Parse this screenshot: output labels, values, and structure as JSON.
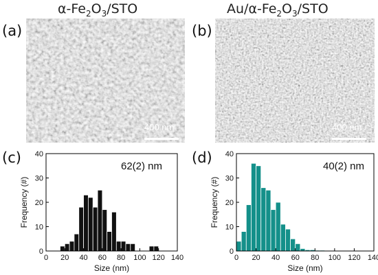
{
  "panels": {
    "a": {
      "label": "(a)",
      "title_prefix": "α-Fe",
      "sub1": "2",
      "mid": "O",
      "sub2": "3",
      "suffix": "/STO",
      "scale": "400 nm"
    },
    "b": {
      "label": "(b)",
      "title_prefix": "Au/α-Fe",
      "sub1": "2",
      "mid": "O",
      "sub2": "3",
      "suffix": "/STO",
      "scale": "400 nm"
    },
    "c": {
      "label": "(c)",
      "annotation": "62(2) nm"
    },
    "d": {
      "label": "(d)",
      "annotation": "40(2) nm"
    }
  },
  "colors": {
    "hist_c": "#111111",
    "hist_d": "#14908a"
  },
  "chart_data": [
    {
      "type": "bar",
      "title": "",
      "xlabel": "Size (nm)",
      "ylabel": "Frequency (#)",
      "xlim": [
        0,
        140
      ],
      "ylim": [
        0,
        40
      ],
      "xticks": [
        0,
        20,
        40,
        60,
        80,
        100,
        120,
        140
      ],
      "yticks": [
        0,
        10,
        20,
        30,
        40
      ],
      "bin_width": 5,
      "bin_starts": [
        15,
        20,
        25,
        30,
        35,
        40,
        45,
        50,
        55,
        60,
        65,
        70,
        75,
        80,
        85,
        90,
        95,
        100,
        105,
        110,
        115,
        120,
        125
      ],
      "values": [
        2,
        3,
        4,
        7,
        18,
        23,
        22,
        18,
        25,
        17,
        8,
        16,
        4,
        4,
        3,
        3,
        0,
        0,
        0,
        2,
        2,
        0,
        0
      ]
    },
    {
      "type": "bar",
      "title": "",
      "xlabel": "Size (nm)",
      "ylabel": "Frequency (#)",
      "xlim": [
        0,
        140
      ],
      "ylim": [
        0,
        40
      ],
      "xticks": [
        0,
        20,
        40,
        60,
        80,
        100,
        120,
        140
      ],
      "yticks": [
        0,
        10,
        20,
        30,
        40
      ],
      "bin_width": 5,
      "bin_starts": [
        0,
        5,
        10,
        15,
        20,
        25,
        30,
        35,
        40,
        45,
        50,
        55,
        60,
        65,
        70,
        75,
        80,
        85,
        90,
        95,
        100,
        105,
        110,
        115,
        120,
        125
      ],
      "values": [
        4,
        8,
        19,
        36,
        35,
        26,
        25,
        17,
        20,
        11,
        9,
        5,
        3,
        1,
        0.5,
        0.5,
        0.3,
        0.3,
        0,
        0,
        0,
        0,
        0,
        0,
        0,
        0
      ]
    }
  ]
}
